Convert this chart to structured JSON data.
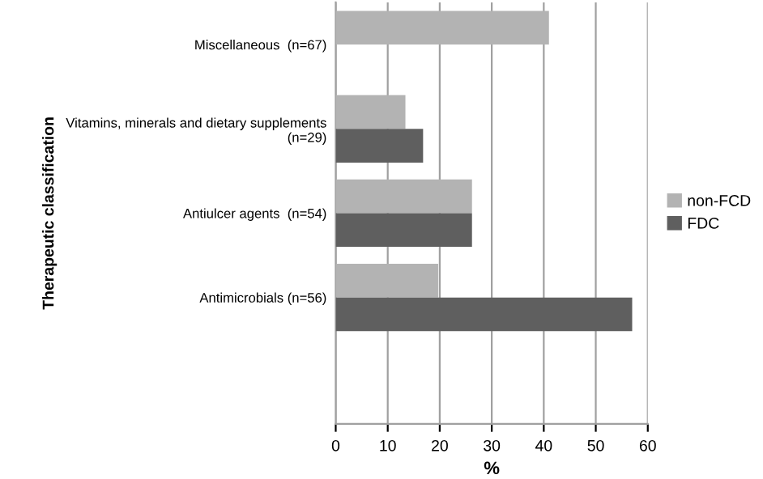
{
  "chart_data": {
    "type": "bar",
    "orientation": "horizontal",
    "categories": [
      "Miscellaneous  (n=67)",
      "Vitamins, minerals and dietary supplements\n(n=29)",
      "Antiulcer agents  (n=54)",
      "Antimicrobials (n=56)",
      null
    ],
    "series": [
      {
        "name": "non-FCD",
        "color": "#b3b3b3",
        "values": [
          41,
          13.4,
          26.2,
          19.7,
          null
        ]
      },
      {
        "name": "FDC",
        "color": "#5f5f5f",
        "values": [
          null,
          16.8,
          26.2,
          57,
          null
        ]
      }
    ],
    "xlabel": "%",
    "ylabel": "Therapeutic classification",
    "xlim": [
      0,
      60
    ],
    "xticks": [
      0,
      10,
      20,
      30,
      40,
      50,
      60
    ],
    "grid": "x",
    "legend": "right"
  }
}
